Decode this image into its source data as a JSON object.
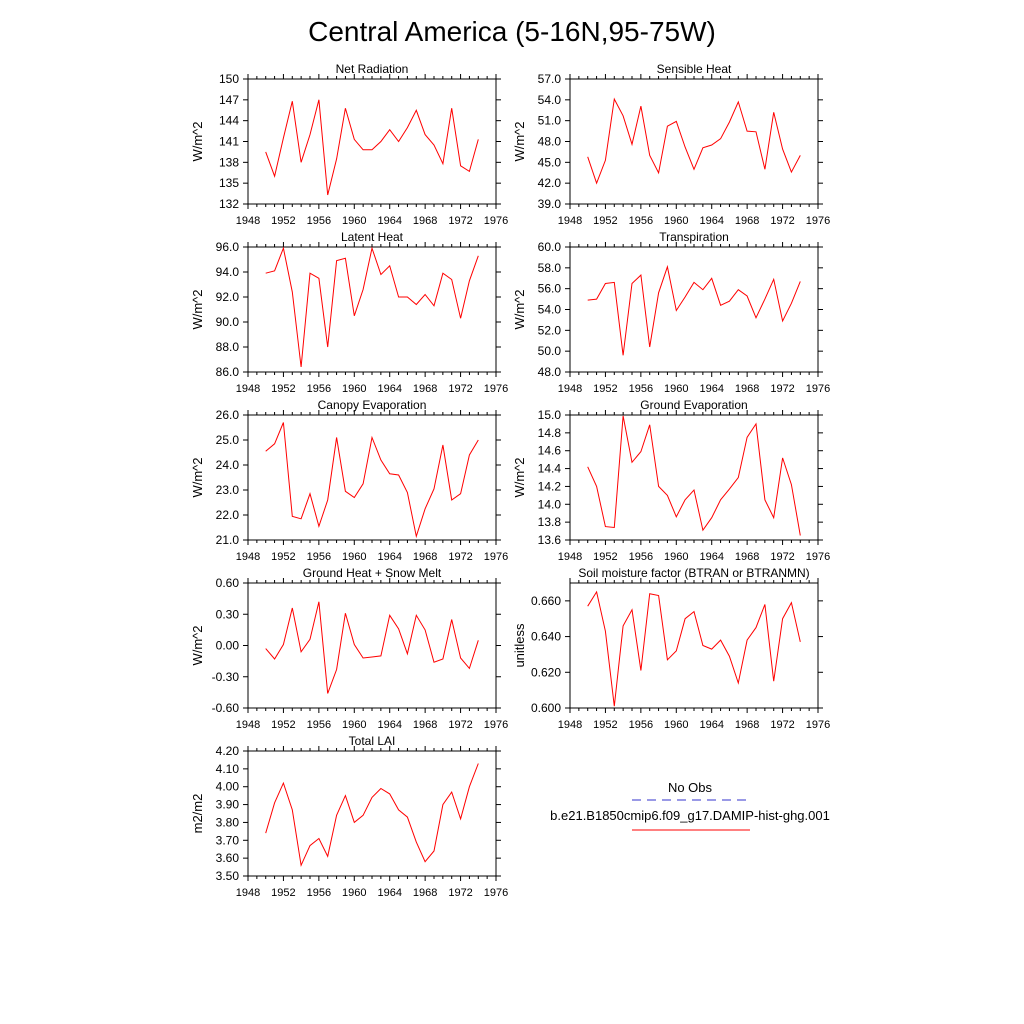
{
  "figure": {
    "title": "Central America (5-16N,95-75W)",
    "line_color": "#ff0000",
    "obs_color": "#3333cc",
    "legend": {
      "obs_label": "No Obs",
      "model_label": "b.e21.B1850cmip6.f09_g17.DAMIP-hist-ghg.001"
    }
  },
  "chart_data": [
    {
      "type": "line",
      "title": "Net Radiation",
      "ylabel": "W/m^2",
      "xlim": [
        1948,
        1976
      ],
      "xticks": [
        1948,
        1952,
        1956,
        1960,
        1964,
        1968,
        1972,
        1976
      ],
      "ylim": [
        132,
        150
      ],
      "yticks": [
        "132",
        "135",
        "138",
        "141",
        "144",
        "147",
        "150"
      ],
      "series": [
        {
          "x": [
            1950,
            1951,
            1952,
            1953,
            1954,
            1955,
            1956,
            1957,
            1958,
            1959,
            1960,
            1961,
            1962,
            1963,
            1964,
            1965,
            1966,
            1967,
            1968,
            1969,
            1970,
            1971,
            1972,
            1973,
            1974
          ],
          "values": [
            139.5,
            136.0,
            141.5,
            146.8,
            138.0,
            142.0,
            147.0,
            133.3,
            138.5,
            145.8,
            141.3,
            139.8,
            139.8,
            141.0,
            142.7,
            141.0,
            143.0,
            145.5,
            142.0,
            140.5,
            137.8,
            145.8,
            137.5,
            136.7,
            141.3
          ]
        }
      ]
    },
    {
      "type": "line",
      "title": "Sensible Heat",
      "ylabel": "W/m^2",
      "xlim": [
        1948,
        1976
      ],
      "xticks": [
        1948,
        1952,
        1956,
        1960,
        1964,
        1968,
        1972,
        1976
      ],
      "ylim": [
        39,
        57
      ],
      "yticks": [
        "39.0",
        "42.0",
        "45.0",
        "48.0",
        "51.0",
        "54.0",
        "57.0"
      ],
      "series": [
        {
          "x": [
            1950,
            1951,
            1952,
            1953,
            1954,
            1955,
            1956,
            1957,
            1958,
            1959,
            1960,
            1961,
            1962,
            1963,
            1964,
            1965,
            1966,
            1967,
            1968,
            1969,
            1970,
            1971,
            1972,
            1973,
            1974
          ],
          "values": [
            45.8,
            42.0,
            45.3,
            54.1,
            51.7,
            47.6,
            53.1,
            46.0,
            43.5,
            50.2,
            50.9,
            47.2,
            44.0,
            47.1,
            47.5,
            48.4,
            50.8,
            53.7,
            49.5,
            49.4,
            44.0,
            52.2,
            46.9,
            43.6,
            46.0
          ]
        }
      ]
    },
    {
      "type": "line",
      "title": "Latent Heat",
      "ylabel": "W/m^2",
      "xlim": [
        1948,
        1976
      ],
      "xticks": [
        1948,
        1952,
        1956,
        1960,
        1964,
        1968,
        1972,
        1976
      ],
      "ylim": [
        86,
        96
      ],
      "yticks": [
        "86.0",
        "88.0",
        "90.0",
        "92.0",
        "94.0",
        "96.0"
      ],
      "series": [
        {
          "x": [
            1950,
            1951,
            1952,
            1953,
            1954,
            1955,
            1956,
            1957,
            1958,
            1959,
            1960,
            1961,
            1962,
            1963,
            1964,
            1965,
            1966,
            1967,
            1968,
            1969,
            1970,
            1971,
            1972,
            1973,
            1974
          ],
          "values": [
            93.9,
            94.1,
            95.9,
            92.4,
            86.4,
            93.9,
            93.5,
            88.0,
            94.9,
            95.1,
            90.5,
            92.6,
            95.9,
            93.8,
            94.5,
            92.0,
            92.0,
            91.4,
            92.2,
            91.3,
            93.9,
            93.4,
            90.3,
            93.3,
            95.3
          ]
        }
      ]
    },
    {
      "type": "line",
      "title": "Transpiration",
      "ylabel": "W/m^2",
      "xlim": [
        1948,
        1976
      ],
      "xticks": [
        1948,
        1952,
        1956,
        1960,
        1964,
        1968,
        1972,
        1976
      ],
      "ylim": [
        48,
        60
      ],
      "yticks": [
        "48.0",
        "50.0",
        "52.0",
        "54.0",
        "56.0",
        "58.0",
        "60.0"
      ],
      "series": [
        {
          "x": [
            1950,
            1951,
            1952,
            1953,
            1954,
            1955,
            1956,
            1957,
            1958,
            1959,
            1960,
            1961,
            1962,
            1963,
            1964,
            1965,
            1966,
            1967,
            1968,
            1969,
            1970,
            1971,
            1972,
            1973,
            1974
          ],
          "values": [
            54.9,
            55.0,
            56.5,
            56.6,
            49.6,
            56.5,
            57.3,
            50.4,
            55.6,
            58.1,
            53.9,
            55.2,
            56.6,
            55.9,
            57.0,
            54.4,
            54.8,
            55.9,
            55.3,
            53.2,
            55.0,
            56.9,
            52.9,
            54.6,
            56.7
          ]
        }
      ]
    },
    {
      "type": "line",
      "title": "Canopy Evaporation",
      "ylabel": "W/m^2",
      "xlim": [
        1948,
        1976
      ],
      "xticks": [
        1948,
        1952,
        1956,
        1960,
        1964,
        1968,
        1972,
        1976
      ],
      "ylim": [
        21,
        26
      ],
      "yticks": [
        "21.0",
        "22.0",
        "23.0",
        "24.0",
        "25.0",
        "26.0"
      ],
      "series": [
        {
          "x": [
            1950,
            1951,
            1952,
            1953,
            1954,
            1955,
            1956,
            1957,
            1958,
            1959,
            1960,
            1961,
            1962,
            1963,
            1964,
            1965,
            1966,
            1967,
            1968,
            1969,
            1970,
            1971,
            1972,
            1973,
            1974
          ],
          "values": [
            24.55,
            24.85,
            25.7,
            21.95,
            21.85,
            22.85,
            21.55,
            22.6,
            25.1,
            22.95,
            22.7,
            23.25,
            25.1,
            24.2,
            23.65,
            23.6,
            22.9,
            21.15,
            22.25,
            23.05,
            24.8,
            22.6,
            22.85,
            24.4,
            25.0
          ]
        }
      ]
    },
    {
      "type": "line",
      "title": "Ground Evaporation",
      "ylabel": "W/m^2",
      "xlim": [
        1948,
        1976
      ],
      "xticks": [
        1948,
        1952,
        1956,
        1960,
        1964,
        1968,
        1972,
        1976
      ],
      "ylim": [
        13.6,
        15.0
      ],
      "yticks": [
        "13.6",
        "13.8",
        "14.0",
        "14.2",
        "14.4",
        "14.6",
        "14.8",
        "15.0"
      ],
      "series": [
        {
          "x": [
            1950,
            1951,
            1952,
            1953,
            1954,
            1955,
            1956,
            1957,
            1958,
            1959,
            1960,
            1961,
            1962,
            1963,
            1964,
            1965,
            1966,
            1967,
            1968,
            1969,
            1970,
            1971,
            1972,
            1973,
            1974
          ],
          "values": [
            14.42,
            14.2,
            13.75,
            13.74,
            14.99,
            14.47,
            14.59,
            14.89,
            14.2,
            14.1,
            13.86,
            14.05,
            14.16,
            13.71,
            13.85,
            14.05,
            14.17,
            14.3,
            14.75,
            14.9,
            14.05,
            13.85,
            14.52,
            14.22,
            13.65
          ]
        }
      ]
    },
    {
      "type": "line",
      "title": "Ground Heat + Snow Melt",
      "ylabel": "W/m^2",
      "xlim": [
        1948,
        1976
      ],
      "xticks": [
        1948,
        1952,
        1956,
        1960,
        1964,
        1968,
        1972,
        1976
      ],
      "ylim": [
        -0.6,
        0.6
      ],
      "yticks": [
        "-0.60",
        "-0.30",
        "0.00",
        "0.30",
        "0.60"
      ],
      "series": [
        {
          "x": [
            1950,
            1951,
            1952,
            1953,
            1954,
            1955,
            1956,
            1957,
            1958,
            1959,
            1960,
            1961,
            1962,
            1963,
            1964,
            1965,
            1966,
            1967,
            1968,
            1969,
            1970,
            1971,
            1972,
            1973,
            1974
          ],
          "values": [
            -0.03,
            -0.13,
            0.01,
            0.36,
            -0.06,
            0.06,
            0.42,
            -0.46,
            -0.23,
            0.31,
            0.01,
            -0.12,
            -0.11,
            -0.1,
            0.29,
            0.16,
            -0.08,
            0.29,
            0.15,
            -0.16,
            -0.13,
            0.25,
            -0.12,
            -0.22,
            0.05
          ]
        }
      ]
    },
    {
      "type": "line",
      "title": "Soil moisture factor (BTRAN or BTRANMN)",
      "ylabel": "unitless",
      "xlim": [
        1948,
        1976
      ],
      "xticks": [
        1948,
        1952,
        1956,
        1960,
        1964,
        1968,
        1972,
        1976
      ],
      "ylim": [
        0.6,
        0.67
      ],
      "yticks": [
        "0.600",
        "0.620",
        "0.640",
        "0.660"
      ],
      "series": [
        {
          "x": [
            1950,
            1951,
            1952,
            1953,
            1954,
            1955,
            1956,
            1957,
            1958,
            1959,
            1960,
            1961,
            1962,
            1963,
            1964,
            1965,
            1966,
            1967,
            1968,
            1969,
            1970,
            1971,
            1972,
            1973,
            1974
          ],
          "values": [
            0.657,
            0.665,
            0.643,
            0.601,
            0.646,
            0.655,
            0.621,
            0.664,
            0.663,
            0.627,
            0.632,
            0.65,
            0.654,
            0.635,
            0.633,
            0.638,
            0.629,
            0.614,
            0.638,
            0.645,
            0.658,
            0.615,
            0.65,
            0.659,
            0.637
          ]
        }
      ]
    },
    {
      "type": "line",
      "title": "Total LAI",
      "ylabel": "m2/m2",
      "xlim": [
        1948,
        1976
      ],
      "xticks": [
        1948,
        1952,
        1956,
        1960,
        1964,
        1968,
        1972,
        1976
      ],
      "ylim": [
        3.5,
        4.2
      ],
      "yticks": [
        "3.50",
        "3.60",
        "3.70",
        "3.80",
        "3.90",
        "4.00",
        "4.10",
        "4.20"
      ],
      "series": [
        {
          "x": [
            1950,
            1951,
            1952,
            1953,
            1954,
            1955,
            1956,
            1957,
            1958,
            1959,
            1960,
            1961,
            1962,
            1963,
            1964,
            1965,
            1966,
            1967,
            1968,
            1969,
            1970,
            1971,
            1972,
            1973,
            1974
          ],
          "values": [
            3.74,
            3.91,
            4.02,
            3.87,
            3.56,
            3.67,
            3.71,
            3.61,
            3.84,
            3.95,
            3.8,
            3.84,
            3.94,
            3.99,
            3.96,
            3.87,
            3.83,
            3.69,
            3.58,
            3.64,
            3.9,
            3.97,
            3.82,
            4.0,
            4.13
          ]
        }
      ]
    }
  ]
}
